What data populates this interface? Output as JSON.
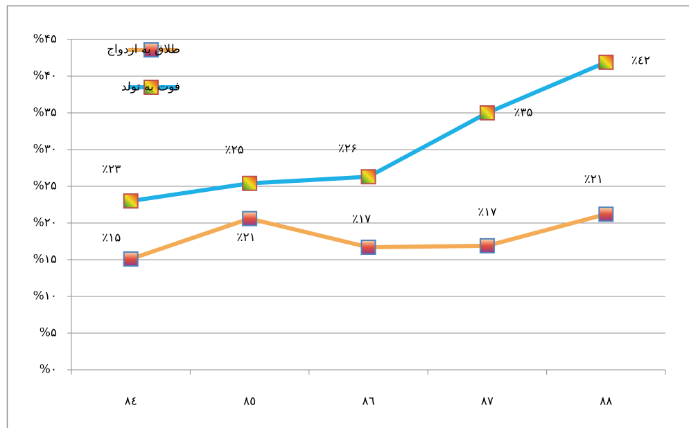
{
  "chart_data": {
    "type": "line",
    "categories": [
      "٨٤",
      "٨٥",
      "٨٦",
      "٨٧",
      "٨٨"
    ],
    "series": [
      {
        "name": "طلاق به ازدواج",
        "color": "#f4ab55",
        "values": [
          15.1,
          20.6,
          16.7,
          16.9,
          21.2
        ],
        "value_labels": [
          "٪۱۵",
          "٪۲۱",
          "٪۱۷",
          "٪۱۷",
          "٪۲۱"
        ]
      },
      {
        "name": "فوت به تولد",
        "color": "#1fb0e6",
        "values": [
          23.0,
          25.4,
          26.3,
          35.0,
          41.9
        ],
        "value_labels": [
          "٪۲۳",
          "٪۲۵",
          "٪۲۶",
          "٪۳۵",
          "٪٤۲"
        ]
      }
    ],
    "ylim": [
      0,
      45
    ],
    "yticks": [
      {
        "value": 0,
        "label": "%۰"
      },
      {
        "value": 5,
        "label": "%۵"
      },
      {
        "value": 10,
        "label": "%۱۰"
      },
      {
        "value": 15,
        "label": "%۱۵"
      },
      {
        "value": 20,
        "label": "%۲۰"
      },
      {
        "value": 25,
        "label": "%۲۵"
      },
      {
        "value": 30,
        "label": "%۳۰"
      },
      {
        "value": 35,
        "label": "%۳۵"
      },
      {
        "value": 40,
        "label": "%۴۰"
      },
      {
        "value": 45,
        "label": "%۴۵"
      }
    ],
    "grid": true,
    "legend": "top-left"
  }
}
